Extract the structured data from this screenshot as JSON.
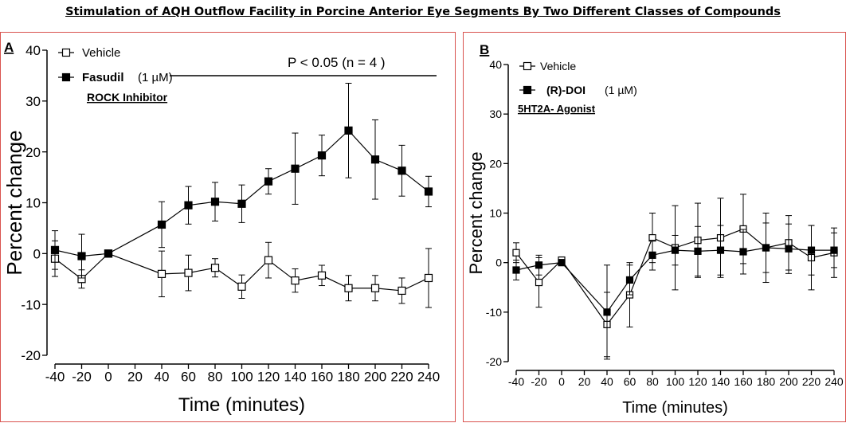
{
  "title": "Stimulation of AQH Outflow Facility in Porcine Anterior Eye Segments By Two Different Classes of Compounds",
  "colors": {
    "panel_border": "#d9534f",
    "line": "#000000"
  },
  "chart_data": [
    {
      "panel": "A",
      "type": "line",
      "xlabel": "Time (minutes)",
      "ylabel": "Percent change",
      "xlim": [
        -40,
        240
      ],
      "ylim": [
        -20,
        40
      ],
      "x_ticks": [
        -40,
        -20,
        0,
        20,
        40,
        60,
        80,
        100,
        120,
        140,
        160,
        180,
        200,
        220,
        240
      ],
      "y_ticks": [
        -20,
        -10,
        0,
        10,
        20,
        30,
        40
      ],
      "legend": [
        {
          "series": "Vehicle",
          "label": "Vehicle"
        },
        {
          "series": "Fasudil",
          "label": "Fasudil",
          "dose": "(1 µM)",
          "note": "ROCK Inhibitor"
        }
      ],
      "annotation": {
        "text": "P < 0.05  (n = 4 )",
        "x_from": 40,
        "x_to": 240,
        "y": 35
      },
      "series": [
        {
          "name": "Vehicle",
          "marker": "open-square",
          "x": [
            -40,
            -20,
            0,
            40,
            60,
            80,
            100,
            120,
            140,
            160,
            180,
            200,
            220,
            240
          ],
          "y": [
            -1,
            -5,
            0,
            -4,
            -3.8,
            -2.8,
            -6.5,
            -1.3,
            -5.3,
            -4.3,
            -6.8,
            -6.8,
            -7.3,
            -4.8
          ],
          "err": [
            3.5,
            1.8,
            0,
            4.5,
            3.5,
            1.8,
            2.3,
            3.5,
            2.3,
            2.0,
            2.5,
            2.5,
            2.5,
            5.8
          ]
        },
        {
          "name": "Fasudil",
          "marker": "filled-square",
          "x": [
            -40,
            -20,
            0,
            40,
            60,
            80,
            100,
            120,
            140,
            160,
            180,
            200,
            220,
            240
          ],
          "y": [
            0.7,
            -0.5,
            0,
            5.7,
            9.5,
            10.2,
            9.8,
            14.2,
            16.7,
            19.3,
            24.2,
            18.5,
            16.3,
            12.2
          ],
          "err": [
            3.8,
            4.3,
            0,
            4.5,
            3.7,
            3.8,
            3.7,
            2.5,
            7.0,
            4.0,
            9.3,
            7.8,
            5.0,
            3.0
          ]
        }
      ]
    },
    {
      "panel": "B",
      "type": "line",
      "xlabel": "Time (minutes)",
      "ylabel": "Percent change",
      "xlim": [
        -40,
        240
      ],
      "ylim": [
        -20,
        40
      ],
      "x_ticks": [
        -40,
        -20,
        0,
        20,
        40,
        60,
        80,
        100,
        120,
        140,
        160,
        180,
        200,
        220,
        240
      ],
      "y_ticks": [
        -20,
        -10,
        0,
        10,
        20,
        30,
        40
      ],
      "legend": [
        {
          "series": "Vehicle",
          "label": "Vehicle"
        },
        {
          "series": "(R)-DOI",
          "label": "(R)-DOI",
          "dose": "(1 µM)",
          "note": "5HT2A- Agonist"
        }
      ],
      "series": [
        {
          "name": "Vehicle",
          "marker": "open-square",
          "x": [
            -40,
            -20,
            0,
            40,
            60,
            80,
            100,
            120,
            140,
            160,
            180,
            200,
            220,
            240
          ],
          "y": [
            2,
            -4,
            0.5,
            -12.5,
            -6.5,
            5,
            3,
            4.5,
            5,
            6.8,
            3,
            4,
            1,
            2
          ],
          "err": [
            2,
            5,
            0,
            6.5,
            6.5,
            5,
            8.5,
            7.5,
            8,
            7,
            7,
            5.5,
            6.5,
            5
          ]
        },
        {
          "name": "(R)-DOI",
          "marker": "filled-square",
          "x": [
            -40,
            -20,
            0,
            40,
            60,
            80,
            100,
            120,
            140,
            160,
            180,
            200,
            220,
            240
          ],
          "y": [
            -1.5,
            -0.5,
            0,
            -10,
            -3.5,
            1.5,
            2.5,
            2.3,
            2.5,
            2.2,
            3,
            2.8,
            2.5,
            2.5
          ],
          "err": [
            2,
            2,
            0,
            9.5,
            3,
            3,
            3,
            5,
            5,
            4.5,
            5,
            5,
            5,
            3.5
          ]
        }
      ]
    }
  ]
}
